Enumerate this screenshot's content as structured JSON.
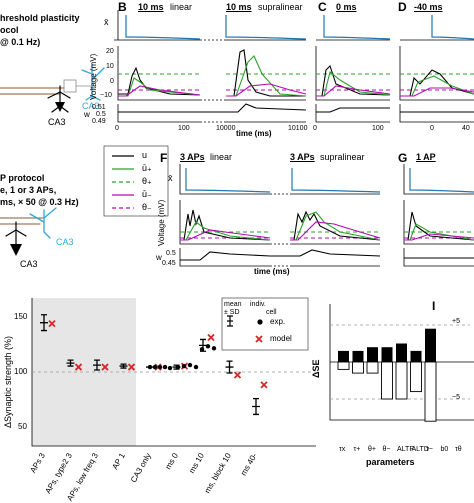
{
  "panel_letters": {
    "B": "B",
    "C": "C",
    "D": "D",
    "F": "F",
    "G": "G",
    "I": "I"
  },
  "protocols": {
    "top": {
      "line1": "hreshold plasticity",
      "line2": "ocol",
      "line3": "@ 0.1 Hz)"
    },
    "bottom": {
      "line1": "P protocol",
      "line2": "e, 1 or 3 APs,",
      "line3": "ms, × 50 @ 0.3 Hz)"
    },
    "neuron_labels": {
      "ca3_blue_top": "CA3",
      "ca3_black_top": "CA3",
      "ca3_blue_bottom": "CA3",
      "ca3_black_bottom": "CA3"
    }
  },
  "panelB": {
    "left_label": "10 ms",
    "left_type": "linear",
    "right_label": "10 ms",
    "right_type": "supralinear",
    "xbar": "x̄",
    "ylabel": "Voltage (mV)",
    "w": "w",
    "ticks_v": [
      "20",
      "10",
      "0",
      "−10"
    ],
    "ticks_w": [
      "0.51",
      "0.5",
      "0.49"
    ],
    "ticks_x": [
      "0",
      "100",
      "10000",
      "10100"
    ],
    "xlabel": "time (ms)"
  },
  "panelC": {
    "label": "0 ms",
    "ticks_x": [
      "0",
      "100"
    ]
  },
  "panelD": {
    "label": "-40 ms",
    "ticks_x": [
      "0",
      "40"
    ]
  },
  "panelF": {
    "left_label": "3 APs",
    "left_type": "linear",
    "right_label": "3 APs",
    "right_type": "supralinear",
    "xbar": "x̄",
    "ylabel": "Voltage (mV)",
    "w": "w",
    "ticks_w": [
      "0.5",
      "0.45"
    ],
    "xlabel": "time (ms)"
  },
  "panelG": {
    "label": "1 AP"
  },
  "legend_F": {
    "items": [
      {
        "label": "u",
        "color": "#000000",
        "dash": ""
      },
      {
        "label": "ū₊",
        "color": "#2ca02c",
        "dash": ""
      },
      {
        "label": "θ₊",
        "color": "#2ca02c",
        "dash": "4,3"
      },
      {
        "label": "ū₋",
        "color": "#b10cb1",
        "dash": ""
      },
      {
        "label": "θ₋",
        "color": "#b10cb1",
        "dash": "4,3"
      }
    ]
  },
  "panelH": {
    "ylabel": "ΔSynaptic strength (%)",
    "ticks_y": [
      "150",
      "100",
      "50"
    ],
    "categories": [
      "3 APs",
      "3 APs, type2",
      "3 APs, low freq",
      "1 AP",
      "CA3 only",
      "0 ms",
      "10 ms",
      "10 ms, block",
      "-40 ms"
    ],
    "legend": {
      "mean": "mean",
      "sd": "± SD",
      "indiv": "indiv.",
      "cell": "cell",
      "exp": "exp.",
      "model": "model"
    }
  },
  "panelI": {
    "ylabel": "ΔSE",
    "xlabel": "parameters",
    "ref_top": "+5",
    "ref_bottom": "−5",
    "params": [
      "τx",
      "τ+",
      "θ+",
      "θ−",
      "ALTP",
      "ALTD",
      "τ−",
      "b0",
      "τθ"
    ]
  },
  "chart_data": [
    {
      "type": "scatter",
      "panel": "H",
      "ylabel": "ΔSynaptic strength (%)",
      "ylim": [
        20,
        170
      ],
      "categories": [
        "3 APs",
        "3 APs, type2",
        "3 APs, low freq",
        "1 AP",
        "CA3 only",
        "0 ms",
        "10 ms",
        "10 ms, block",
        "-40 ms"
      ],
      "series": [
        {
          "name": "exp.",
          "values": [
            145,
            104,
            102,
            101,
            100,
            100,
            122,
            100,
            60
          ],
          "sd": [
            8,
            3,
            5,
            2,
            0,
            2,
            6,
            6,
            8
          ]
        },
        {
          "name": "model",
          "values": [
            144,
            100,
            100,
            100,
            100,
            101,
            130,
            92,
            82
          ]
        }
      ]
    },
    {
      "type": "bar",
      "panel": "I",
      "ylabel": "ΔSE",
      "xlabel": "parameters",
      "categories": [
        "τx",
        "τ+",
        "θ+",
        "θ−",
        "ALTP",
        "ALTD",
        "τ−",
        "b0",
        "τθ"
      ],
      "series": [
        {
          "name": "positive",
          "values": [
            1.5,
            1.5,
            2,
            2,
            2.5,
            1.5,
            4.5,
            0,
            0
          ]
        },
        {
          "name": "negative",
          "values": [
            -1,
            -1.5,
            -1.5,
            -5,
            -5,
            -4,
            -8,
            0,
            0
          ]
        }
      ]
    }
  ]
}
